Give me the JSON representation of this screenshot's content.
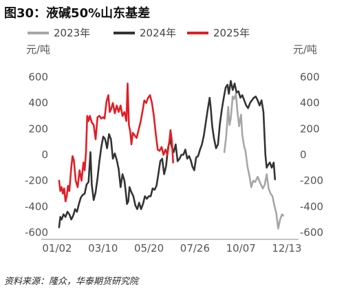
{
  "figure": {
    "title": "图30：液碱50%山东基差",
    "source": "资料来源：隆众，华泰期货研究院"
  },
  "chart_data": {
    "type": "line",
    "x_ticks": [
      "01/02",
      "03/10",
      "05/20",
      "07/26",
      "10/07",
      "12/13"
    ],
    "x_range": [
      0,
      365
    ],
    "y_left_unit": "元/吨",
    "y_right_unit": "元/吨",
    "ylim": [
      -600,
      600
    ],
    "y_ticks": [
      600,
      400,
      200,
      0,
      -200,
      -400,
      -600
    ],
    "y_tick_labels": [
      "600",
      "400",
      "200",
      "0",
      "-200",
      "-400",
      "-600"
    ],
    "legend_position": "top",
    "grid": false,
    "series": [
      {
        "name": "2023年",
        "color": "#a6a6a6",
        "points": [
          [
            260,
            20
          ],
          [
            263,
            150
          ],
          [
            266,
            370
          ],
          [
            268,
            230
          ],
          [
            270,
            280
          ],
          [
            273,
            450
          ],
          [
            275,
            430
          ],
          [
            278,
            470
          ],
          [
            280,
            350
          ],
          [
            283,
            220
          ],
          [
            286,
            310
          ],
          [
            288,
            150
          ],
          [
            291,
            60
          ],
          [
            293,
            30
          ],
          [
            296,
            -90
          ],
          [
            299,
            -160
          ],
          [
            302,
            -250
          ],
          [
            305,
            -200
          ],
          [
            308,
            -210
          ],
          [
            312,
            -170
          ],
          [
            316,
            -220
          ],
          [
            320,
            -260
          ],
          [
            323,
            -230
          ],
          [
            326,
            -150
          ],
          [
            329,
            -260
          ],
          [
            332,
            -300
          ],
          [
            335,
            -320
          ],
          [
            338,
            -390
          ],
          [
            341,
            -450
          ],
          [
            344,
            -570
          ],
          [
            347,
            -500
          ],
          [
            350,
            -460
          ],
          [
            352,
            -470
          ]
        ]
      },
      {
        "name": "2024年",
        "color": "#333333",
        "points": [
          [
            2,
            -560
          ],
          [
            4,
            -480
          ],
          [
            6,
            -500
          ],
          [
            9,
            -460
          ],
          [
            12,
            -480
          ],
          [
            15,
            -440
          ],
          [
            18,
            -460
          ],
          [
            21,
            -500
          ],
          [
            24,
            -470
          ],
          [
            27,
            -420
          ],
          [
            30,
            -440
          ],
          [
            33,
            -380
          ],
          [
            36,
            -330
          ],
          [
            39,
            -310
          ],
          [
            42,
            -300
          ],
          [
            45,
            -230
          ],
          [
            48,
            -210
          ],
          [
            51,
            20
          ],
          [
            53,
            -230
          ],
          [
            56,
            -350
          ],
          [
            59,
            -290
          ],
          [
            62,
            -180
          ],
          [
            65,
            -50
          ],
          [
            68,
            60
          ],
          [
            71,
            140
          ],
          [
            74,
            120
          ],
          [
            77,
            50
          ],
          [
            80,
            160
          ],
          [
            83,
            120
          ],
          [
            86,
            -30
          ],
          [
            89,
            10
          ],
          [
            92,
            -40
          ],
          [
            95,
            -110
          ],
          [
            98,
            -250
          ],
          [
            101,
            -150
          ],
          [
            104,
            -200
          ],
          [
            106,
            -280
          ],
          [
            108,
            -380
          ],
          [
            110,
            -360
          ],
          [
            112,
            -250
          ],
          [
            115,
            -290
          ],
          [
            118,
            -320
          ],
          [
            121,
            -390
          ],
          [
            124,
            -420
          ],
          [
            127,
            -370
          ],
          [
            130,
            -420
          ],
          [
            133,
            -380
          ],
          [
            136,
            -320
          ],
          [
            139,
            -340
          ],
          [
            142,
            -320
          ],
          [
            145,
            -320
          ],
          [
            148,
            -260
          ],
          [
            151,
            -270
          ],
          [
            154,
            -240
          ],
          [
            157,
            -150
          ],
          [
            160,
            -50
          ],
          [
            163,
            -30
          ],
          [
            166,
            -150
          ],
          [
            169,
            -90
          ],
          [
            172,
            50
          ],
          [
            175,
            120
          ],
          [
            178,
            60
          ],
          [
            181,
            20
          ],
          [
            184,
            80
          ],
          [
            187,
            -50
          ],
          [
            190,
            -30
          ],
          [
            193,
            0
          ],
          [
            196,
            0
          ],
          [
            199,
            40
          ],
          [
            202,
            -30
          ],
          [
            205,
            -10
          ],
          [
            208,
            -50
          ],
          [
            210,
            -90
          ],
          [
            213,
            -120
          ],
          [
            216,
            -20
          ],
          [
            219,
            -10
          ],
          [
            222,
            40
          ],
          [
            225,
            80
          ],
          [
            228,
            150
          ],
          [
            231,
            250
          ],
          [
            234,
            350
          ],
          [
            237,
            440
          ],
          [
            239,
            350
          ],
          [
            241,
            220
          ],
          [
            244,
            120
          ],
          [
            247,
            50
          ],
          [
            250,
            80
          ],
          [
            253,
            240
          ],
          [
            256,
            350
          ],
          [
            259,
            440
          ],
          [
            262,
            520
          ],
          [
            265,
            540
          ],
          [
            267,
            470
          ],
          [
            270,
            570
          ],
          [
            273,
            500
          ],
          [
            276,
            550
          ],
          [
            279,
            480
          ],
          [
            282,
            490
          ],
          [
            285,
            440
          ],
          [
            288,
            460
          ],
          [
            291,
            420
          ],
          [
            294,
            380
          ],
          [
            297,
            360
          ],
          [
            300,
            400
          ],
          [
            303,
            420
          ],
          [
            306,
            440
          ],
          [
            309,
            450
          ],
          [
            312,
            420
          ],
          [
            315,
            380
          ],
          [
            318,
            420
          ],
          [
            321,
            330
          ],
          [
            324,
            0
          ],
          [
            326,
            -100
          ],
          [
            328,
            -80
          ],
          [
            331,
            -60
          ],
          [
            334,
            -100
          ],
          [
            337,
            -60
          ],
          [
            339,
            -190
          ]
        ]
      },
      {
        "name": "2025年",
        "color": "#e01e26",
        "points": [
          [
            2,
            -200
          ],
          [
            4,
            -280
          ],
          [
            6,
            -250
          ],
          [
            8,
            -300
          ],
          [
            10,
            -260
          ],
          [
            12,
            -360
          ],
          [
            14,
            -320
          ],
          [
            16,
            -240
          ],
          [
            18,
            -280
          ],
          [
            21,
            -100
          ],
          [
            23,
            -10
          ],
          [
            25,
            -40
          ],
          [
            28,
            -200
          ],
          [
            31,
            -250
          ],
          [
            34,
            -120
          ],
          [
            37,
            -200
          ],
          [
            40,
            -60
          ],
          [
            42,
            -120
          ],
          [
            44,
            20
          ],
          [
            46,
            300
          ],
          [
            48,
            260
          ],
          [
            50,
            300
          ],
          [
            53,
            250
          ],
          [
            56,
            230
          ],
          [
            59,
            120
          ],
          [
            62,
            290
          ],
          [
            65,
            300
          ],
          [
            68,
            280
          ],
          [
            71,
            290
          ],
          [
            73,
            280
          ],
          [
            76,
            410
          ],
          [
            79,
            460
          ],
          [
            81,
            330
          ],
          [
            83,
            350
          ],
          [
            86,
            400
          ],
          [
            89,
            320
          ],
          [
            92,
            380
          ],
          [
            95,
            330
          ],
          [
            98,
            380
          ],
          [
            101,
            300
          ],
          [
            104,
            330
          ],
          [
            107,
            260
          ],
          [
            109,
            550
          ],
          [
            111,
            230
          ],
          [
            113,
            180
          ],
          [
            115,
            80
          ],
          [
            117,
            170
          ],
          [
            120,
            150
          ],
          [
            123,
            130
          ],
          [
            126,
            190
          ],
          [
            129,
            250
          ],
          [
            132,
            330
          ],
          [
            135,
            420
          ],
          [
            138,
            400
          ],
          [
            141,
            440
          ],
          [
            144,
            460
          ],
          [
            147,
            400
          ],
          [
            150,
            300
          ],
          [
            153,
            160
          ],
          [
            156,
            40
          ],
          [
            159,
            30
          ],
          [
            162,
            60
          ],
          [
            165,
            0
          ],
          [
            168,
            40
          ],
          [
            171,
            0
          ],
          [
            174,
            100
          ],
          [
            176,
            190
          ],
          [
            178,
            110
          ],
          [
            180,
            -60
          ]
        ]
      }
    ]
  }
}
